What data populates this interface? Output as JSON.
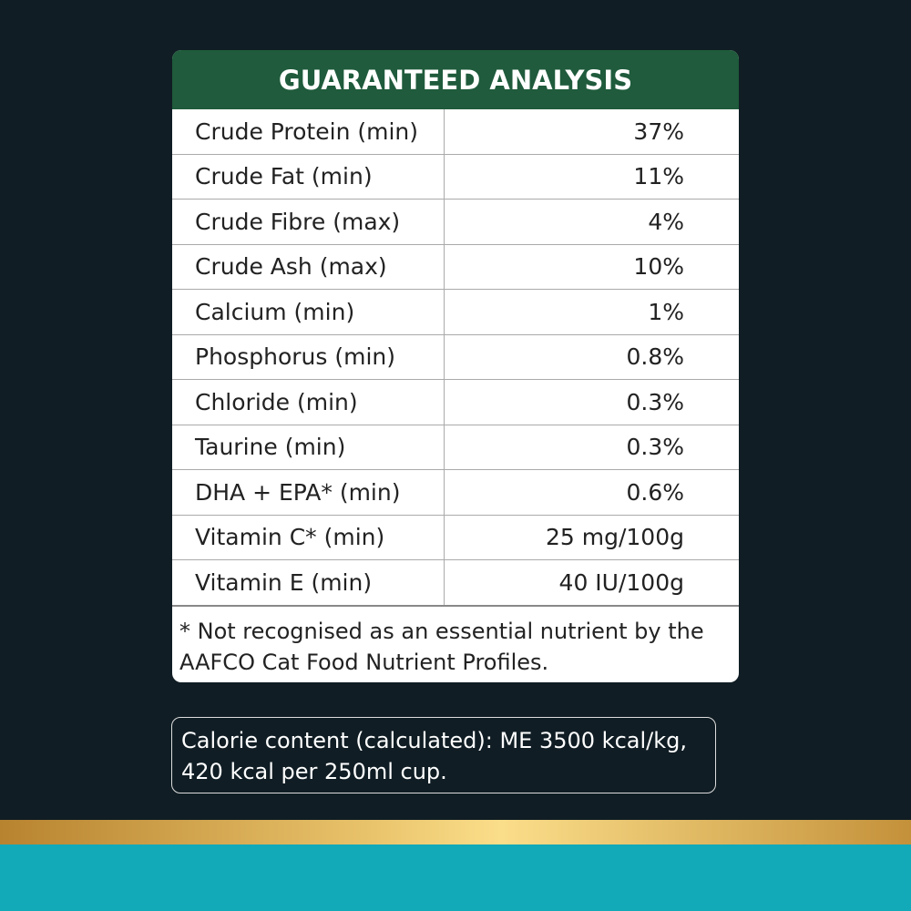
{
  "table": {
    "title": "GUARANTEED ANALYSIS",
    "rows": [
      [
        "Crude Protein (min)",
        "37%"
      ],
      [
        "Crude Fat (min)",
        "11%"
      ],
      [
        "Crude Fibre (max)",
        "4%"
      ],
      [
        "Crude Ash (max)",
        "10%"
      ],
      [
        "Calcium (min)",
        "1%"
      ],
      [
        "Phosphorus (min)",
        "0.8%"
      ],
      [
        "Chloride (min)",
        "0.3%"
      ],
      [
        "Taurine (min)",
        "0.3%"
      ],
      [
        "DHA + EPA* (min)",
        "0.6%"
      ],
      [
        "Vitamin C* (min)",
        "25 mg/100g"
      ],
      [
        "Vitamin E (min)",
        "40 IU/100g"
      ]
    ],
    "footnote": "* Not recognised as an essential nutrient by the AAFCO Cat Food Nutrient Profiles."
  },
  "calorie": "Calorie content (calculated): ME 3500 kcal/kg, 420 kcal per 250ml cup."
}
